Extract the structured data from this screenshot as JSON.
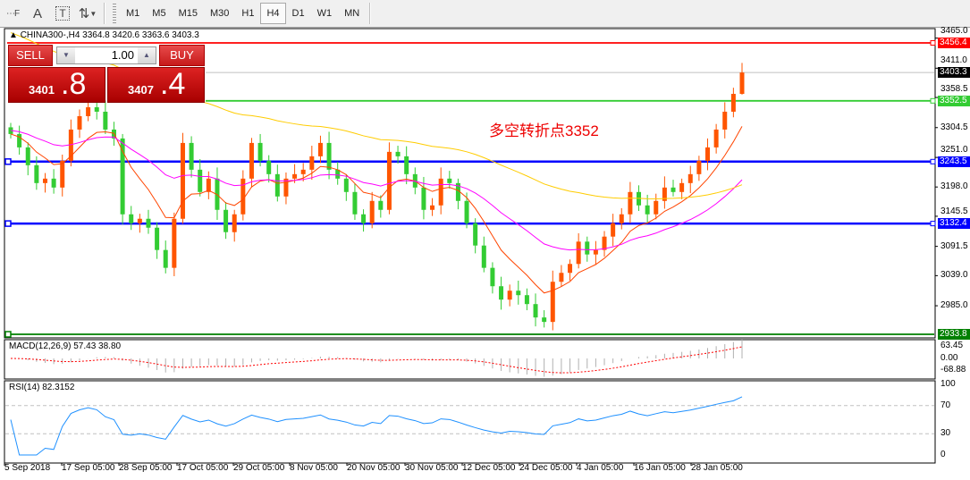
{
  "toolbar": {
    "tools": [
      {
        "icon": "grid-lines-icon"
      },
      {
        "icon": "text-a-icon",
        "label": "A"
      },
      {
        "icon": "text-label-icon",
        "label": "T"
      },
      {
        "icon": "arrows-icon"
      }
    ],
    "timeframes": [
      "M1",
      "M5",
      "M15",
      "M30",
      "H1",
      "H4",
      "D1",
      "W1",
      "MN"
    ],
    "selected": "H4"
  },
  "chart": {
    "header": "CHINA300-,H4  3364.8 3420.6 3363.6 3403.3",
    "annotation": "多空转折点3352"
  },
  "trade_panel": {
    "sell_label": "SELL",
    "buy_label": "BUY",
    "lots": "1.00",
    "sell_price_main": "3401",
    "sell_price_big": ".8",
    "buy_price_main": "3407",
    "buy_price_big": ".4"
  },
  "price_axis": {
    "ticks": [
      "3465.0",
      "3411.0",
      "3358.5",
      "3304.5",
      "3251.0",
      "3198.0",
      "3145.5",
      "3091.5",
      "3039.0",
      "2985.0"
    ]
  },
  "levels": [
    {
      "price": 3456.4,
      "label": "3456.4",
      "color": "#ff0000"
    },
    {
      "price": 3403.3,
      "label": "3403.3",
      "color": "#000000",
      "line": "#c0c0c0"
    },
    {
      "price": 3352.5,
      "label": "3352.5",
      "color": "#33cc33"
    },
    {
      "price": 3243.5,
      "label": "3243.5",
      "color": "#0000ff"
    },
    {
      "price": 3132.4,
      "label": "3132.4",
      "color": "#0000ff"
    },
    {
      "price": 2933.8,
      "label": "2933.8",
      "color": "#008000"
    }
  ],
  "macd": {
    "label": "MACD(12,26,9) 57.43 38.80",
    "ticks": [
      "63.45",
      "0.00",
      "-68.88"
    ]
  },
  "rsi": {
    "label": "RSI(14) 82.3152",
    "ticks": [
      "100",
      "70",
      "30",
      "0"
    ]
  },
  "time_axis": [
    "5 Sep 2018",
    "17 Sep 05:00",
    "28 Sep 05:00",
    "17 Oct 05:00",
    "29 Oct 05:00",
    "8 Nov 05:00",
    "20 Nov 05:00",
    "30 Nov 05:00",
    "12 Dec 05:00",
    "24 Dec 05:00",
    "4 Jan 05:00",
    "16 Jan 05:00",
    "28 Jan 05:00"
  ],
  "colors": {
    "bull": "#33cc33",
    "bear": "#ff5500",
    "ma_fast": "#ff4500",
    "ma_mid": "#ff00ff",
    "ma_slow": "#ffcc00",
    "rsi": "#1e90ff",
    "macd_signal": "#ff0000"
  },
  "chart_data": {
    "type": "candlestick",
    "symbol": "CHINA300-",
    "timeframe": "H4",
    "ylim": [
      2933.8,
      3465.0
    ],
    "closes": [
      3293,
      3269,
      3237,
      3205,
      3213,
      3197,
      3245,
      3301,
      3325,
      3341,
      3333,
      3301,
      3285,
      3149,
      3133,
      3141,
      3125,
      3085,
      3053,
      3141,
      3277,
      3229,
      3189,
      3213,
      3157,
      3117,
      3149,
      3213,
      3277,
      3245,
      3221,
      3181,
      3213,
      3221,
      3229,
      3253,
      3277,
      3229,
      3213,
      3189,
      3149,
      3133,
      3173,
      3157,
      3261,
      3253,
      3221,
      3197,
      3157,
      3165,
      3213,
      3205,
      3173,
      3133,
      3093,
      3053,
      3020,
      2996,
      3012,
      3004,
      2988,
      2964,
      2956,
      3028,
      3044,
      3060,
      3100,
      3077,
      3085,
      3109,
      3133,
      3149,
      3189,
      3165,
      3149,
      3173,
      3197,
      3189,
      3205,
      3221,
      3245,
      3269,
      3301,
      3333,
      3365,
      3403.3
    ],
    "last_bar": {
      "open": 3364.8,
      "high": 3420.6,
      "low": 3363.6,
      "close": 3403.3
    }
  }
}
